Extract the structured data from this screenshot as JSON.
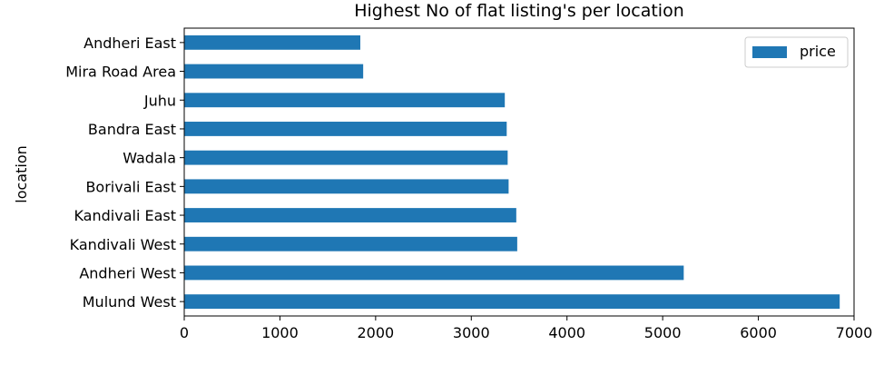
{
  "chart_data": {
    "type": "bar",
    "orientation": "horizontal",
    "title": "Highest No of flat listing's per location",
    "xlabel": "",
    "ylabel": "location",
    "categories": [
      "Andheri East",
      "Mira Road Area",
      "Juhu",
      "Bandra East",
      "Wadala",
      "Borivali East",
      "Kandivali East",
      "Kandivali West",
      "Andheri West",
      "Mulund West"
    ],
    "series": [
      {
        "name": "price",
        "color": "#1f77b4",
        "values": [
          1840,
          1870,
          3350,
          3370,
          3380,
          3390,
          3470,
          3480,
          5220,
          6850
        ]
      }
    ],
    "xlim": [
      0,
      7000
    ],
    "xticks": [
      0,
      1000,
      2000,
      3000,
      4000,
      5000,
      6000,
      7000
    ],
    "xtick_labels": [
      "0",
      "1000",
      "2000",
      "3000",
      "4000",
      "5000",
      "6000",
      "7000"
    ],
    "legend": {
      "position": "top-right",
      "entries": [
        "price"
      ]
    },
    "grid": false
  }
}
